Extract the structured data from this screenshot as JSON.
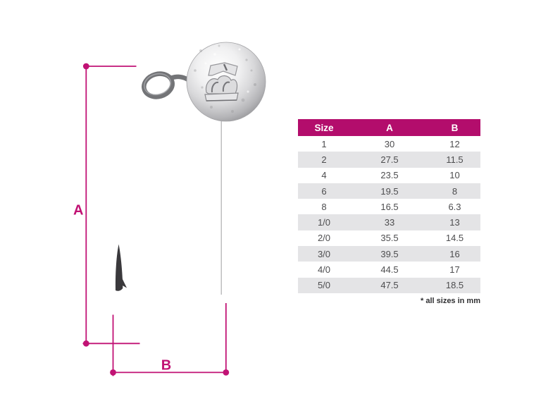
{
  "colors": {
    "accent": "#c11274",
    "header_bg": "#b30d6c",
    "row_alt": "#e4e4e6",
    "table_text": "#4d4d4f",
    "footnote_color": "#2f2f31",
    "hook": "#3a393c"
  },
  "diagram": {
    "label_a": "A",
    "label_b": "B",
    "subject": "round-ball jig head hook with embossed brand stamp, dimension A = total length, dimension B = gape width"
  },
  "table": {
    "columns": [
      "Size",
      "A",
      "B"
    ],
    "rows": [
      [
        "1",
        "30",
        "12"
      ],
      [
        "2",
        "27.5",
        "11.5"
      ],
      [
        "4",
        "23.5",
        "10"
      ],
      [
        "6",
        "19.5",
        "8"
      ],
      [
        "8",
        "16.5",
        "6.3"
      ],
      [
        "1/0",
        "33",
        "13"
      ],
      [
        "2/0",
        "35.5",
        "14.5"
      ],
      [
        "3/0",
        "39.5",
        "16"
      ],
      [
        "4/0",
        "44.5",
        "17"
      ],
      [
        "5/0",
        "47.5",
        "18.5"
      ]
    ],
    "footnote": "* all sizes in mm"
  }
}
